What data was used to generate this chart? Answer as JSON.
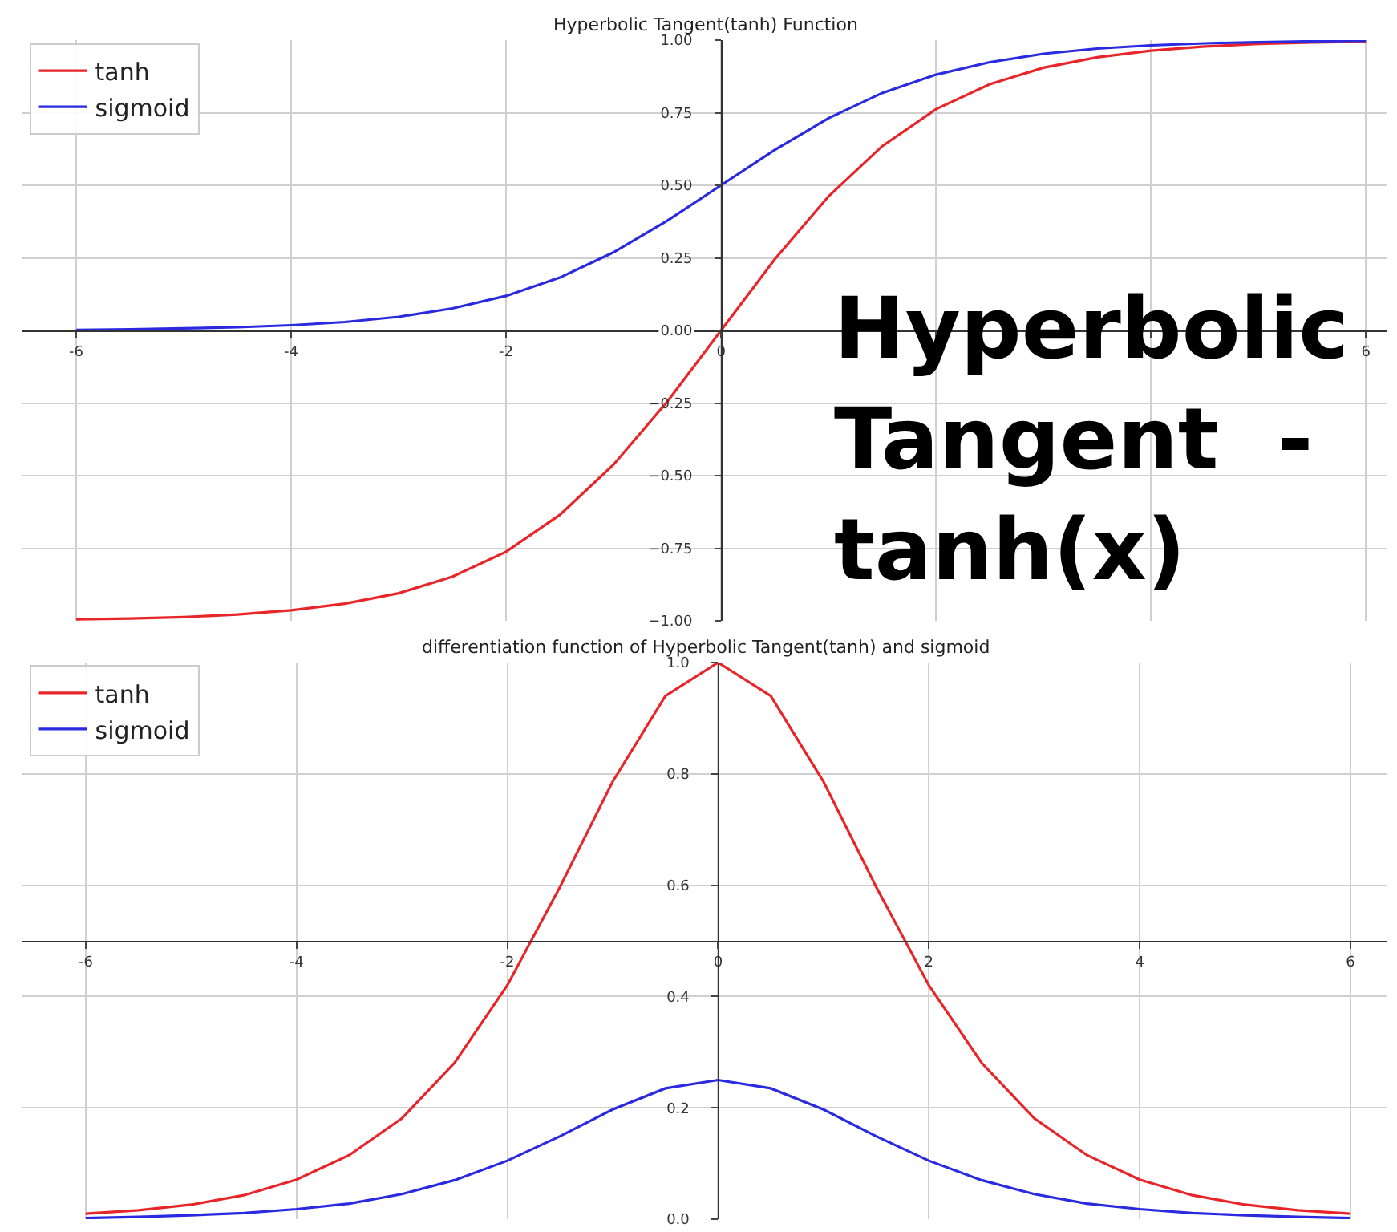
{
  "chart_data": [
    {
      "type": "line",
      "title": "Hyperbolic Tangent(tanh) Function",
      "x": [
        -6,
        -5.5,
        -5,
        -4.5,
        -4,
        -3.5,
        -3,
        -2.5,
        -2,
        -1.5,
        -1,
        -0.5,
        0,
        0.5,
        1,
        1.5,
        2,
        2.5,
        3,
        3.5,
        4,
        4.5,
        5,
        5.5,
        6
      ],
      "series": [
        {
          "name": "tanh",
          "color": "#e8262a",
          "values": [
            -0.995,
            -0.992,
            -0.987,
            -0.978,
            -0.964,
            -0.941,
            -0.905,
            -0.848,
            -0.762,
            -0.635,
            -0.462,
            -0.245,
            0,
            0.245,
            0.462,
            0.635,
            0.762,
            0.848,
            0.905,
            0.941,
            0.964,
            0.978,
            0.987,
            0.992,
            0.995
          ]
        },
        {
          "name": "sigmoid",
          "color": "#2a2ae0",
          "values": [
            0.002,
            0.004,
            0.007,
            0.011,
            0.018,
            0.029,
            0.047,
            0.076,
            0.119,
            0.182,
            0.269,
            0.378,
            0.5,
            0.622,
            0.731,
            0.818,
            0.881,
            0.924,
            0.953,
            0.971,
            0.982,
            0.989,
            0.993,
            0.996,
            0.998
          ]
        }
      ],
      "xlim": [
        -6.5,
        6.2
      ],
      "ylim": [
        -1,
        1
      ],
      "xticks": [
        -6,
        -4,
        -2,
        0,
        {
          "value": 2,
          "label": null
        },
        {
          "value": 4,
          "label": null
        },
        6
      ],
      "yticks": [
        {
          "value": -1,
          "label": "−1.00"
        },
        {
          "value": -0.75,
          "label": "−0.75"
        },
        {
          "value": -0.5,
          "label": "−0.50"
        },
        {
          "value": -0.25,
          "label": "−0.25"
        },
        {
          "value": 0,
          "label": "0.00"
        },
        {
          "value": 0.25,
          "label": "0.25"
        },
        {
          "value": 0.5,
          "label": "0.50"
        },
        {
          "value": 0.75,
          "label": "0.75"
        },
        {
          "value": 1,
          "label": "1.00"
        }
      ],
      "grid": true,
      "legend": "top left",
      "line_style": "solid",
      "marker": "none",
      "annotations": [
        "Hyperbolic\nTangent  -\ntanh(x)"
      ]
    },
    {
      "type": "line",
      "title": "differentiation function of Hyperbolic Tangent(tanh) and sigmoid",
      "x": [
        -6,
        -5.5,
        -5,
        -4.5,
        -4,
        -3.5,
        -3,
        -2.5,
        -2,
        -1.5,
        -1,
        -0.5,
        0,
        0.5,
        1,
        1.5,
        2,
        2.5,
        3,
        3.5,
        4,
        4.5,
        5,
        5.5,
        6
      ],
      "series": [
        {
          "name": "tanh",
          "color": "#e8262a",
          "values": [
            0.01,
            0.016,
            0.026,
            0.043,
            0.071,
            0.115,
            0.181,
            0.281,
            0.42,
            0.597,
            0.786,
            0.94,
            1,
            0.94,
            0.786,
            0.597,
            0.42,
            0.281,
            0.181,
            0.115,
            0.071,
            0.043,
            0.026,
            0.016,
            0.01
          ]
        },
        {
          "name": "sigmoid",
          "color": "#2a2ae0",
          "values": [
            0.002,
            0.004,
            0.007,
            0.011,
            0.018,
            0.028,
            0.045,
            0.07,
            0.105,
            0.149,
            0.197,
            0.235,
            0.25,
            0.235,
            0.197,
            0.149,
            0.105,
            0.07,
            0.045,
            0.028,
            0.018,
            0.011,
            0.007,
            0.004,
            0.002
          ]
        }
      ],
      "xlim": [
        -6.6,
        6.35
      ],
      "ylim": [
        0,
        1
      ],
      "xticks": [
        -6,
        -4,
        -2,
        0,
        2,
        4,
        6
      ],
      "yticks": [
        {
          "value": 0,
          "label": "0.0"
        },
        {
          "value": 0.2,
          "label": "0.2"
        },
        {
          "value": 0.4,
          "label": "0.4"
        },
        {
          "value": 0.6,
          "label": "0.6"
        },
        {
          "value": 0.8,
          "label": "0.8"
        },
        {
          "value": 1,
          "label": "1.0"
        }
      ],
      "grid": true,
      "legend": "top left",
      "line_style": "solid",
      "marker": "none"
    }
  ]
}
